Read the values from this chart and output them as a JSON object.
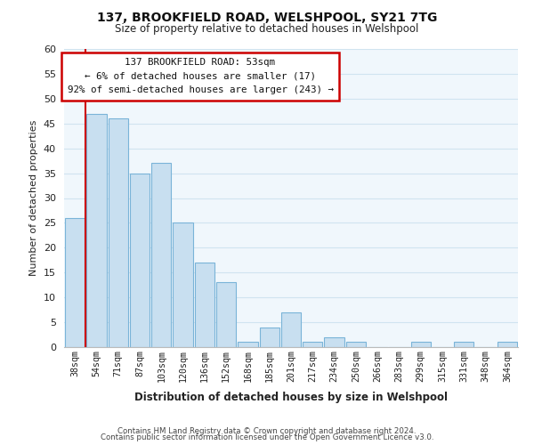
{
  "title": "137, BROOKFIELD ROAD, WELSHPOOL, SY21 7TG",
  "subtitle": "Size of property relative to detached houses in Welshpool",
  "xlabel": "Distribution of detached houses by size in Welshpool",
  "ylabel": "Number of detached properties",
  "footer_line1": "Contains HM Land Registry data © Crown copyright and database right 2024.",
  "footer_line2": "Contains public sector information licensed under the Open Government Licence v3.0.",
  "bar_labels": [
    "38sqm",
    "54sqm",
    "71sqm",
    "87sqm",
    "103sqm",
    "120sqm",
    "136sqm",
    "152sqm",
    "168sqm",
    "185sqm",
    "201sqm",
    "217sqm",
    "234sqm",
    "250sqm",
    "266sqm",
    "283sqm",
    "299sqm",
    "315sqm",
    "331sqm",
    "348sqm",
    "364sqm"
  ],
  "bar_values": [
    26,
    47,
    46,
    35,
    37,
    25,
    17,
    13,
    1,
    4,
    7,
    1,
    2,
    1,
    0,
    0,
    1,
    0,
    1,
    0,
    1
  ],
  "bar_color": "#c8dff0",
  "bar_edge_color": "#7ab4d8",
  "highlight_line_color": "#cc0000",
  "ylim": [
    0,
    60
  ],
  "yticks": [
    0,
    5,
    10,
    15,
    20,
    25,
    30,
    35,
    40,
    45,
    50,
    55,
    60
  ],
  "annotation_title": "137 BROOKFIELD ROAD: 53sqm",
  "annotation_line2": "← 6% of detached houses are smaller (17)",
  "annotation_line3": "92% of semi-detached houses are larger (243) →",
  "annotation_box_color": "#ffffff",
  "annotation_box_edge": "#cc0000",
  "grid_color": "#d0e4f0",
  "background_color": "#f0f7fc",
  "figure_bg": "#ffffff"
}
